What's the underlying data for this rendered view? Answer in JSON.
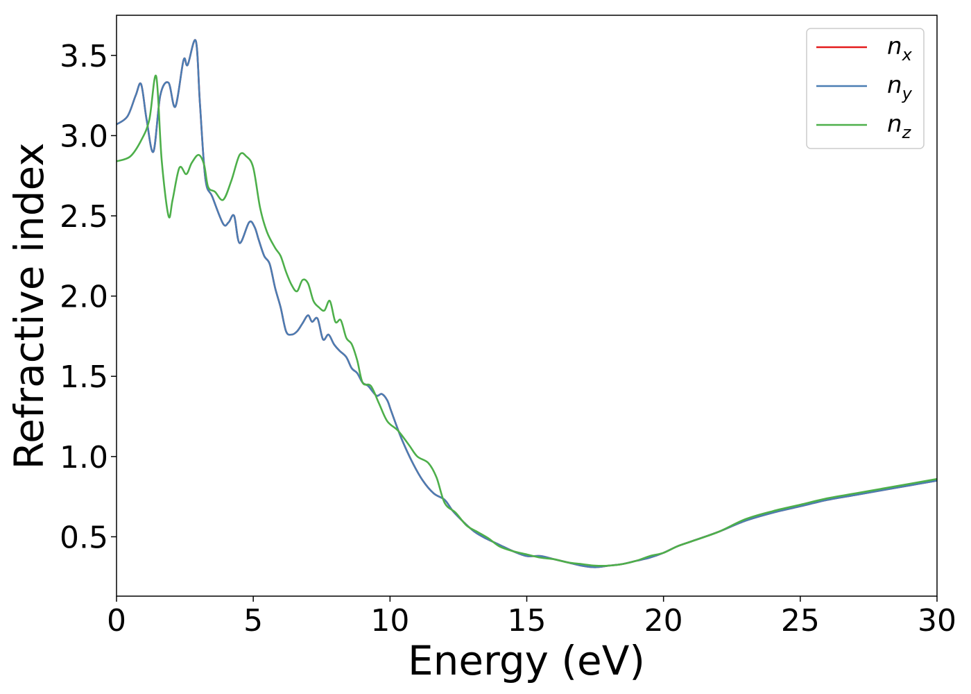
{
  "chart_data": {
    "type": "line",
    "title": "",
    "xlabel": "Energy (eV)",
    "ylabel": "Refractive index",
    "xlim": [
      0,
      30
    ],
    "ylim": [
      0.13,
      3.75
    ],
    "xticks": [
      0,
      5,
      10,
      15,
      20,
      25,
      30
    ],
    "xtick_labels": [
      "0",
      "5",
      "10",
      "15",
      "20",
      "25",
      "30"
    ],
    "yticks": [
      0.5,
      1.0,
      1.5,
      2.0,
      2.5,
      3.0,
      3.5
    ],
    "ytick_labels": [
      "0.5",
      "1.0",
      "1.5",
      "2.0",
      "2.5",
      "3.0",
      "3.5"
    ],
    "grid": false,
    "legend_position": "top-right",
    "series": [
      {
        "name": "n_x",
        "label_base": "n",
        "label_sub": "x",
        "color": "#e41a1c",
        "x": [
          0,
          0.4,
          0.7,
          0.9,
          1.1,
          1.35,
          1.6,
          1.9,
          2.15,
          2.45,
          2.6,
          2.9,
          3.05,
          3.25,
          3.5,
          3.9,
          4.1,
          4.3,
          4.5,
          4.85,
          5.05,
          5.2,
          5.4,
          5.6,
          5.8,
          6.0,
          6.2,
          6.4,
          6.6,
          6.8,
          7.0,
          7.15,
          7.35,
          7.55,
          7.75,
          7.95,
          8.15,
          8.4,
          8.6,
          8.8,
          9.0,
          9.2,
          9.5,
          9.7,
          9.9,
          10.05,
          10.4,
          10.8,
          11.2,
          11.6,
          12.0,
          12.3,
          12.7,
          13.1,
          13.5,
          14.0,
          14.5,
          15.0,
          15.5,
          16.0,
          16.5,
          17.0,
          17.5,
          18.0,
          18.5,
          19.0,
          19.5,
          20.0,
          20.5,
          21.0,
          22.0,
          23.0,
          24.0,
          25.0,
          26.0,
          27.0,
          28.0,
          29.0,
          30.0
        ],
        "y": [
          3.07,
          3.12,
          3.25,
          3.32,
          3.1,
          2.9,
          3.25,
          3.33,
          3.18,
          3.47,
          3.44,
          3.59,
          3.2,
          2.73,
          2.62,
          2.45,
          2.46,
          2.5,
          2.33,
          2.46,
          2.43,
          2.35,
          2.25,
          2.2,
          2.05,
          1.93,
          1.78,
          1.76,
          1.78,
          1.83,
          1.88,
          1.84,
          1.86,
          1.73,
          1.76,
          1.7,
          1.66,
          1.62,
          1.55,
          1.52,
          1.46,
          1.44,
          1.38,
          1.39,
          1.35,
          1.28,
          1.12,
          0.97,
          0.85,
          0.77,
          0.73,
          0.66,
          0.59,
          0.53,
          0.49,
          0.45,
          0.41,
          0.38,
          0.38,
          0.36,
          0.34,
          0.32,
          0.31,
          0.32,
          0.33,
          0.35,
          0.37,
          0.4,
          0.44,
          0.47,
          0.53,
          0.6,
          0.65,
          0.69,
          0.73,
          0.76,
          0.79,
          0.82,
          0.85
        ]
      },
      {
        "name": "n_y",
        "label_base": "n",
        "label_sub": "y",
        "color": "#4a7db3",
        "x": [
          0,
          0.4,
          0.7,
          0.9,
          1.1,
          1.35,
          1.6,
          1.9,
          2.15,
          2.45,
          2.6,
          2.9,
          3.05,
          3.25,
          3.5,
          3.9,
          4.1,
          4.3,
          4.5,
          4.85,
          5.05,
          5.2,
          5.4,
          5.6,
          5.8,
          6.0,
          6.2,
          6.4,
          6.6,
          6.8,
          7.0,
          7.15,
          7.35,
          7.55,
          7.75,
          7.95,
          8.15,
          8.4,
          8.6,
          8.8,
          9.0,
          9.2,
          9.5,
          9.7,
          9.9,
          10.05,
          10.4,
          10.8,
          11.2,
          11.6,
          12.0,
          12.3,
          12.7,
          13.1,
          13.5,
          14.0,
          14.5,
          15.0,
          15.5,
          16.0,
          16.5,
          17.0,
          17.5,
          18.0,
          18.5,
          19.0,
          19.5,
          20.0,
          20.5,
          21.0,
          22.0,
          23.0,
          24.0,
          25.0,
          26.0,
          27.0,
          28.0,
          29.0,
          30.0
        ],
        "y": [
          3.07,
          3.12,
          3.25,
          3.32,
          3.1,
          2.9,
          3.25,
          3.33,
          3.18,
          3.47,
          3.44,
          3.59,
          3.2,
          2.73,
          2.62,
          2.45,
          2.46,
          2.5,
          2.33,
          2.46,
          2.43,
          2.35,
          2.25,
          2.2,
          2.05,
          1.93,
          1.78,
          1.76,
          1.78,
          1.83,
          1.88,
          1.84,
          1.86,
          1.73,
          1.76,
          1.7,
          1.66,
          1.62,
          1.55,
          1.52,
          1.46,
          1.44,
          1.38,
          1.39,
          1.35,
          1.28,
          1.12,
          0.97,
          0.85,
          0.77,
          0.73,
          0.66,
          0.59,
          0.53,
          0.49,
          0.45,
          0.41,
          0.38,
          0.38,
          0.36,
          0.34,
          0.32,
          0.31,
          0.32,
          0.33,
          0.35,
          0.37,
          0.4,
          0.44,
          0.47,
          0.53,
          0.6,
          0.65,
          0.69,
          0.73,
          0.76,
          0.79,
          0.82,
          0.85
        ]
      },
      {
        "name": "n_z",
        "label_base": "n",
        "label_sub": "z",
        "color": "#4daf4a",
        "x": [
          0,
          0.5,
          0.9,
          1.2,
          1.45,
          1.65,
          1.9,
          2.05,
          2.3,
          2.55,
          2.75,
          3.0,
          3.2,
          3.35,
          3.6,
          3.9,
          4.2,
          4.5,
          4.75,
          5.0,
          5.25,
          5.5,
          5.8,
          6.0,
          6.2,
          6.4,
          6.6,
          6.8,
          7.0,
          7.2,
          7.4,
          7.6,
          7.8,
          8.0,
          8.2,
          8.4,
          8.6,
          8.8,
          9.0,
          9.3,
          9.6,
          9.9,
          10.3,
          10.7,
          11.0,
          11.4,
          11.7,
          12.0,
          12.4,
          12.8,
          13.2,
          13.6,
          14.0,
          14.5,
          15.0,
          15.5,
          16.0,
          16.5,
          17.0,
          17.5,
          18.0,
          18.5,
          19.0,
          19.5,
          20.0,
          20.5,
          21.0,
          22.0,
          23.0,
          24.0,
          25.0,
          26.0,
          27.0,
          28.0,
          29.0,
          30.0
        ],
        "y": [
          2.84,
          2.87,
          2.97,
          3.1,
          3.37,
          2.85,
          2.5,
          2.6,
          2.8,
          2.76,
          2.83,
          2.88,
          2.82,
          2.68,
          2.65,
          2.6,
          2.72,
          2.88,
          2.87,
          2.8,
          2.55,
          2.4,
          2.3,
          2.25,
          2.15,
          2.07,
          2.03,
          2.1,
          2.08,
          1.97,
          1.93,
          1.91,
          1.97,
          1.84,
          1.85,
          1.74,
          1.7,
          1.6,
          1.46,
          1.44,
          1.33,
          1.22,
          1.16,
          1.07,
          1.0,
          0.96,
          0.87,
          0.71,
          0.65,
          0.57,
          0.53,
          0.49,
          0.44,
          0.41,
          0.39,
          0.37,
          0.36,
          0.34,
          0.33,
          0.32,
          0.32,
          0.33,
          0.35,
          0.38,
          0.4,
          0.44,
          0.47,
          0.53,
          0.61,
          0.66,
          0.7,
          0.74,
          0.77,
          0.8,
          0.83,
          0.86
        ]
      }
    ]
  }
}
